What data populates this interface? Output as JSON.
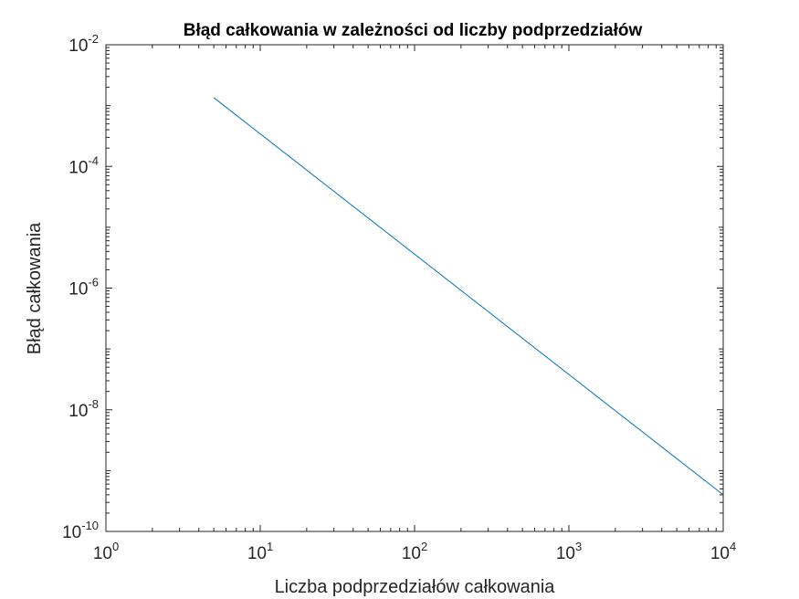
{
  "chart_data": {
    "type": "line",
    "title": "Błąd całkowania w zależności od liczby podprzedziałów",
    "xlabel": "Liczba podprzedziałów całkowania",
    "ylabel": "Błąd całkowania",
    "xscale": "log",
    "yscale": "log",
    "xlim": [
      1,
      10000
    ],
    "ylim": [
      1e-10,
      0.01
    ],
    "grid": false,
    "legend": "none",
    "x_ticks": [
      {
        "base": "10",
        "exp": "0",
        "value": 1
      },
      {
        "base": "10",
        "exp": "1",
        "value": 10
      },
      {
        "base": "10",
        "exp": "2",
        "value": 100
      },
      {
        "base": "10",
        "exp": "3",
        "value": 1000
      },
      {
        "base": "10",
        "exp": "4",
        "value": 10000
      }
    ],
    "y_ticks": [
      {
        "base": "10",
        "exp": "-10",
        "value": 1e-10
      },
      {
        "base": "10",
        "exp": "-8",
        "value": 1e-08
      },
      {
        "base": "10",
        "exp": "-6",
        "value": 1e-06
      },
      {
        "base": "10",
        "exp": "-4",
        "value": 0.0001
      },
      {
        "base": "10",
        "exp": "-2",
        "value": 0.01
      }
    ],
    "series": [
      {
        "color": "#0072BD",
        "x": [
          5,
          10000
        ],
        "y": [
          0.00135,
          4e-10
        ]
      }
    ]
  }
}
